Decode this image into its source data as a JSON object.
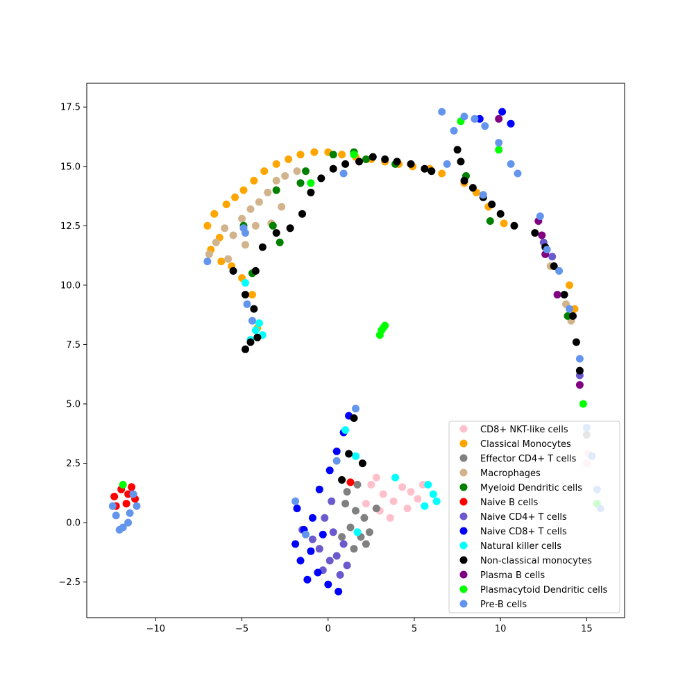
{
  "chart_data": {
    "type": "scatter",
    "title": "",
    "xlabel": "",
    "ylabel": "",
    "xlim": [
      -14.0,
      17.2
    ],
    "ylim": [
      -4.0,
      18.5
    ],
    "xticks": [
      -10,
      -5,
      0,
      5,
      10,
      15
    ],
    "xtick_labels": [
      "−10",
      "−5",
      "0",
      "5",
      "10",
      "15"
    ],
    "yticks": [
      -2.5,
      0.0,
      2.5,
      5.0,
      7.5,
      10.0,
      12.5,
      15.0,
      17.5
    ],
    "ytick_labels": [
      "−2.5",
      "0.0",
      "2.5",
      "5.0",
      "7.5",
      "10.0",
      "12.5",
      "15.0",
      "17.5"
    ],
    "grid": false,
    "legend_position": "lower-right",
    "series": [
      {
        "name": "CD8+ NKT-like cells",
        "color": "#ffc0cb",
        "points": [
          [
            2.5,
            1.6
          ],
          [
            3.2,
            1.2
          ],
          [
            3.8,
            0.9
          ],
          [
            4.3,
            1.5
          ],
          [
            4.8,
            1.3
          ],
          [
            5.2,
            1.0
          ],
          [
            3.0,
            0.5
          ],
          [
            3.6,
            0.2
          ],
          [
            2.2,
            0.8
          ],
          [
            4.6,
            0.6
          ],
          [
            5.5,
            1.6
          ],
          [
            2.8,
            1.9
          ],
          [
            15.0,
            2.5
          ],
          [
            15.1,
            2.9
          ]
        ]
      },
      {
        "name": "Classical Monocytes",
        "color": "#ffa500",
        "points": [
          [
            -7.0,
            12.5
          ],
          [
            -6.6,
            13.0
          ],
          [
            -6.3,
            12.0
          ],
          [
            -5.9,
            13.4
          ],
          [
            -6.8,
            11.5
          ],
          [
            -5.4,
            13.7
          ],
          [
            -4.9,
            14.0
          ],
          [
            -4.3,
            14.4
          ],
          [
            -3.7,
            14.8
          ],
          [
            -3.0,
            15.1
          ],
          [
            -2.3,
            15.3
          ],
          [
            -1.6,
            15.5
          ],
          [
            -0.8,
            15.6
          ],
          [
            0.0,
            15.6
          ],
          [
            0.8,
            15.5
          ],
          [
            1.6,
            15.4
          ],
          [
            2.5,
            15.3
          ],
          [
            3.3,
            15.2
          ],
          [
            4.1,
            15.1
          ],
          [
            4.9,
            15.0
          ],
          [
            5.9,
            14.9
          ],
          [
            6.6,
            14.7
          ],
          [
            -4.4,
            9.6
          ],
          [
            -5.6,
            10.8
          ],
          [
            -5.0,
            10.3
          ],
          [
            -6.2,
            11.0
          ],
          [
            7.9,
            14.3
          ],
          [
            8.6,
            13.9
          ],
          [
            9.3,
            13.3
          ],
          [
            10.2,
            12.6
          ],
          [
            -4.1,
            8.2
          ],
          [
            14.0,
            10.0
          ],
          [
            14.3,
            9.0
          ]
        ]
      },
      {
        "name": "Effector CD4+ T cells",
        "color": "#808080",
        "points": [
          [
            1.0,
            0.8
          ],
          [
            1.6,
            0.5
          ],
          [
            2.1,
            0.2
          ],
          [
            1.3,
            -0.2
          ],
          [
            1.9,
            -0.6
          ],
          [
            2.4,
            -0.4
          ],
          [
            1.1,
            1.3
          ],
          [
            1.5,
            -1.1
          ],
          [
            2.8,
            0.6
          ],
          [
            1.7,
            1.6
          ],
          [
            0.8,
            -0.6
          ],
          [
            2.2,
            -0.9
          ],
          [
            15.0,
            3.7
          ]
        ]
      },
      {
        "name": "Macrophages",
        "color": "#d2b48c",
        "points": [
          [
            -6.5,
            11.8
          ],
          [
            -6.0,
            12.4
          ],
          [
            -5.5,
            12.1
          ],
          [
            -5.0,
            12.8
          ],
          [
            -4.5,
            13.2
          ],
          [
            -4.0,
            13.5
          ],
          [
            -3.5,
            13.9
          ],
          [
            -3.0,
            14.4
          ],
          [
            -2.5,
            14.6
          ],
          [
            -6.9,
            11.3
          ],
          [
            -5.8,
            11.1
          ],
          [
            -4.8,
            11.7
          ],
          [
            -4.2,
            12.5
          ],
          [
            -3.3,
            12.6
          ],
          [
            -2.7,
            13.3
          ],
          [
            -1.8,
            14.8
          ],
          [
            12.9,
            10.8
          ],
          [
            13.8,
            9.2
          ],
          [
            14.1,
            8.5
          ]
        ]
      },
      {
        "name": "Myeloid Dendritic cells",
        "color": "#008000",
        "points": [
          [
            -3.0,
            14.0
          ],
          [
            -1.6,
            14.3
          ],
          [
            -1.3,
            14.8
          ],
          [
            0.3,
            15.5
          ],
          [
            1.5,
            15.6
          ],
          [
            2.2,
            15.3
          ],
          [
            3.9,
            15.1
          ],
          [
            -4.9,
            12.5
          ],
          [
            -3.2,
            12.5
          ],
          [
            -4.4,
            10.5
          ],
          [
            8.0,
            14.6
          ],
          [
            9.4,
            12.7
          ],
          [
            13.9,
            8.7
          ],
          [
            -2.8,
            11.8
          ]
        ]
      },
      {
        "name": "Naive B cells",
        "color": "#ff0000",
        "points": [
          [
            -12.4,
            1.1
          ],
          [
            -12.0,
            1.4
          ],
          [
            -11.6,
            1.2
          ],
          [
            -12.3,
            0.7
          ],
          [
            -11.2,
            1.0
          ],
          [
            -11.7,
            0.8
          ],
          [
            1.3,
            1.7
          ],
          [
            -11.4,
            1.5
          ]
        ]
      },
      {
        "name": "Naive CD4+ T cells",
        "color": "#6a5acd",
        "points": [
          [
            -0.2,
            0.2
          ],
          [
            0.3,
            -0.4
          ],
          [
            0.9,
            -0.9
          ],
          [
            -0.5,
            -1.1
          ],
          [
            0.1,
            -1.6
          ],
          [
            0.7,
            -2.2
          ],
          [
            -0.9,
            -0.7
          ],
          [
            -0.3,
            -2.0
          ],
          [
            0.5,
            -1.4
          ],
          [
            -1.5,
            -0.3
          ],
          [
            1.1,
            -1.8
          ],
          [
            0.2,
            0.9
          ],
          [
            12.5,
            11.8
          ],
          [
            13.0,
            11.2
          ],
          [
            14.6,
            6.2
          ]
        ]
      },
      {
        "name": "Naive CD8+ T cells",
        "color": "#0000ff",
        "points": [
          [
            -1.8,
            0.6
          ],
          [
            -1.4,
            -0.3
          ],
          [
            -1.0,
            -1.2
          ],
          [
            -0.6,
            -2.1
          ],
          [
            0.0,
            -2.6
          ],
          [
            0.6,
            -2.9
          ],
          [
            -1.6,
            -1.6
          ],
          [
            -0.9,
            0.2
          ],
          [
            -0.5,
            1.4
          ],
          [
            0.1,
            2.2
          ],
          [
            0.5,
            3.0
          ],
          [
            0.9,
            3.8
          ],
          [
            1.2,
            4.5
          ],
          [
            -0.3,
            -0.5
          ],
          [
            -1.9,
            -0.9
          ],
          [
            -1.2,
            -2.4
          ],
          [
            10.1,
            17.3
          ],
          [
            10.6,
            16.8
          ],
          [
            8.8,
            17.0
          ]
        ]
      },
      {
        "name": "Natural killer  cells",
        "color": "#00ffff",
        "points": [
          [
            -4.2,
            8.1
          ],
          [
            -3.8,
            7.9
          ],
          [
            -4.5,
            7.7
          ],
          [
            -4.0,
            8.4
          ],
          [
            5.8,
            1.6
          ],
          [
            6.1,
            1.2
          ],
          [
            6.3,
            0.9
          ],
          [
            5.6,
            0.7
          ],
          [
            3.9,
            1.9
          ],
          [
            1.0,
            3.9
          ],
          [
            1.6,
            2.8
          ],
          [
            -4.8,
            10.1
          ],
          [
            1.7,
            -0.4
          ]
        ]
      },
      {
        "name": "Non-classical monocytes",
        "color": "#000000",
        "points": [
          [
            -4.8,
            7.3
          ],
          [
            -4.5,
            7.6
          ],
          [
            -4.1,
            7.8
          ],
          [
            -4.3,
            9.0
          ],
          [
            -4.8,
            9.6
          ],
          [
            -4.2,
            10.6
          ],
          [
            -3.8,
            11.6
          ],
          [
            -3.0,
            12.2
          ],
          [
            -2.2,
            12.4
          ],
          [
            -1.5,
            13.0
          ],
          [
            -1.0,
            13.9
          ],
          [
            -0.4,
            14.5
          ],
          [
            0.3,
            14.9
          ],
          [
            1.0,
            15.1
          ],
          [
            1.8,
            15.2
          ],
          [
            2.6,
            15.4
          ],
          [
            3.3,
            15.3
          ],
          [
            4.0,
            15.2
          ],
          [
            4.8,
            15.1
          ],
          [
            5.6,
            14.9
          ],
          [
            6.0,
            14.8
          ],
          [
            7.5,
            15.7
          ],
          [
            7.7,
            15.2
          ],
          [
            7.9,
            14.4
          ],
          [
            8.4,
            14.1
          ],
          [
            9.0,
            13.7
          ],
          [
            9.5,
            13.4
          ],
          [
            10.0,
            13.0
          ],
          [
            10.8,
            12.5
          ],
          [
            12.0,
            12.2
          ],
          [
            12.6,
            11.6
          ],
          [
            13.1,
            10.8
          ],
          [
            13.7,
            9.6
          ],
          [
            14.2,
            8.7
          ],
          [
            14.4,
            7.6
          ],
          [
            14.6,
            6.4
          ],
          [
            1.5,
            4.4
          ],
          [
            1.2,
            2.9
          ],
          [
            2.0,
            2.5
          ],
          [
            0.8,
            1.8
          ],
          [
            -5.5,
            10.6
          ]
        ]
      },
      {
        "name": "Plasma B cells",
        "color": "#800080",
        "points": [
          [
            12.2,
            12.7
          ],
          [
            12.4,
            12.1
          ],
          [
            12.6,
            11.3
          ],
          [
            13.3,
            9.6
          ],
          [
            9.9,
            17.0
          ],
          [
            14.6,
            5.8
          ]
        ]
      },
      {
        "name": "Plasmacytoid Dendritic cells",
        "color": "#00ff00",
        "points": [
          [
            3.0,
            7.9
          ],
          [
            3.1,
            8.1
          ],
          [
            3.2,
            8.2
          ],
          [
            3.3,
            8.3
          ],
          [
            7.7,
            16.9
          ],
          [
            9.9,
            15.7
          ],
          [
            14.8,
            5.0
          ],
          [
            15.6,
            0.8
          ],
          [
            -11.9,
            1.6
          ],
          [
            1.5,
            15.5
          ],
          [
            -1.0,
            14.3
          ]
        ]
      },
      {
        "name": "Pre-B cells",
        "color": "#6495ed",
        "points": [
          [
            -12.3,
            0.3
          ],
          [
            -11.9,
            -0.2
          ],
          [
            -11.5,
            0.4
          ],
          [
            -11.1,
            0.7
          ],
          [
            -12.1,
            -0.3
          ],
          [
            -11.6,
            0.0
          ],
          [
            -11.3,
            1.2
          ],
          [
            -12.5,
            0.7
          ],
          [
            6.6,
            17.3
          ],
          [
            7.3,
            16.5
          ],
          [
            7.9,
            17.1
          ],
          [
            8.5,
            17.0
          ],
          [
            9.1,
            16.7
          ],
          [
            9.9,
            16.0
          ],
          [
            10.6,
            15.1
          ],
          [
            11.0,
            14.7
          ],
          [
            12.3,
            12.9
          ],
          [
            12.7,
            11.5
          ],
          [
            13.4,
            10.6
          ],
          [
            14.0,
            9.0
          ],
          [
            14.6,
            6.9
          ],
          [
            15.0,
            4.0
          ],
          [
            15.3,
            2.8
          ],
          [
            15.6,
            1.4
          ],
          [
            15.8,
            0.6
          ],
          [
            -4.9,
            12.4
          ],
          [
            -7.0,
            11.0
          ],
          [
            -4.7,
            9.2
          ],
          [
            -4.4,
            8.5
          ],
          [
            0.9,
            14.7
          ],
          [
            9.0,
            13.8
          ],
          [
            6.9,
            15.1
          ],
          [
            -1.9,
            0.9
          ],
          [
            -1.3,
            -0.5
          ],
          [
            0.5,
            2.6
          ],
          [
            1.6,
            4.8
          ],
          [
            -4.8,
            12.2
          ]
        ]
      }
    ]
  }
}
